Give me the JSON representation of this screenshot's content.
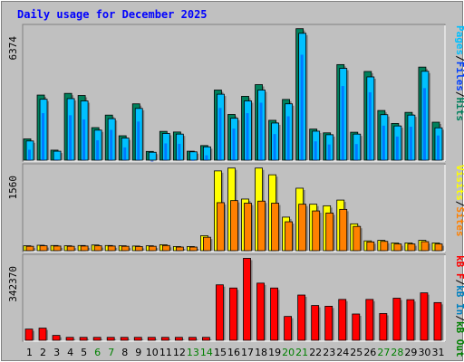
{
  "title": "Daily usage for December 2025",
  "colors": {
    "background": "#C0C0C0",
    "border_light": "#FFFFFF",
    "border_dark": "#808080",
    "title": "#0000FF",
    "hits": "#00805C",
    "files": "#0040FF",
    "pages": "#00C0FF",
    "visits": "#FFFF00",
    "sites": "#FF8000",
    "kbin": "#0080C0",
    "kbout": "#008000",
    "kbf": "#FF0000",
    "weekend_label": "#008000",
    "label": "#000000"
  },
  "chart_data": [
    {
      "type": "bar",
      "panel": "hits-files-pages",
      "ytick": "6374",
      "ymax": 6374,
      "ylim": [
        0,
        6374
      ],
      "legend": [
        "Pages",
        "/",
        "Files",
        "/",
        "Hits"
      ],
      "categories": [
        "1",
        "2",
        "3",
        "4",
        "5",
        "6",
        "7",
        "8",
        "9",
        "10",
        "11",
        "12",
        "13",
        "14",
        "15",
        "16",
        "17",
        "18",
        "19",
        "20",
        "21",
        "22",
        "23",
        "24",
        "25",
        "26",
        "27",
        "28",
        "29",
        "30",
        "31"
      ],
      "series": [
        {
          "name": "Hits",
          "values": [
            1020,
            3120,
            480,
            3200,
            3100,
            1560,
            2160,
            1170,
            2700,
            420,
            1380,
            1350,
            430,
            700,
            3360,
            2190,
            3060,
            3620,
            1910,
            2910,
            6300,
            1490,
            1310,
            4580,
            1340,
            4250,
            2380,
            1760,
            2290,
            4460,
            1820
          ]
        },
        {
          "name": "Files",
          "values": [
            850,
            2600,
            390,
            2500,
            2300,
            1300,
            1800,
            960,
            2200,
            320,
            1150,
            1130,
            360,
            580,
            2850,
            1860,
            2600,
            3100,
            1600,
            2450,
            5400,
            1250,
            1100,
            3900,
            1120,
            3600,
            2000,
            1480,
            1950,
            3800,
            1530
          ]
        },
        {
          "name": "Pages",
          "values": [
            920,
            2920,
            430,
            2950,
            2840,
            1440,
            1990,
            1060,
            2480,
            380,
            1280,
            1250,
            400,
            640,
            3160,
            2010,
            2840,
            3360,
            1780,
            2700,
            6080,
            1390,
            1220,
            4400,
            1250,
            3990,
            2180,
            1640,
            2160,
            4260,
            1550
          ]
        }
      ]
    },
    {
      "type": "bar",
      "panel": "visits-sites",
      "ytick": "1560",
      "ymax": 1560,
      "ylim": [
        0,
        1560
      ],
      "legend": [
        "Visits",
        "/",
        "Sites"
      ],
      "categories": [
        "1",
        "2",
        "3",
        "4",
        "5",
        "6",
        "7",
        "8",
        "9",
        "10",
        "11",
        "12",
        "13",
        "14",
        "15",
        "16",
        "17",
        "18",
        "19",
        "20",
        "21",
        "22",
        "23",
        "24",
        "25",
        "26",
        "27",
        "28",
        "29",
        "30",
        "31"
      ],
      "series": [
        {
          "name": "Visits",
          "values": [
            95,
            105,
            100,
            95,
            100,
            110,
            100,
            95,
            90,
            95,
            115,
            80,
            80,
            290,
            1545,
            1600,
            1000,
            1600,
            1470,
            650,
            1210,
            900,
            870,
            980,
            520,
            190,
            200,
            150,
            150,
            200,
            150
          ]
        },
        {
          "name": "Sites",
          "values": [
            85,
            95,
            90,
            85,
            90,
            95,
            90,
            85,
            80,
            85,
            100,
            70,
            70,
            260,
            930,
            970,
            920,
            960,
            920,
            560,
            900,
            770,
            730,
            800,
            470,
            170,
            180,
            130,
            130,
            175,
            130
          ]
        }
      ]
    },
    {
      "type": "bar",
      "panel": "kbytes",
      "ytick": "342370",
      "ymax": 342370,
      "ylim": [
        0,
        342370
      ],
      "legend": [
        "kB F",
        "/",
        "kB In",
        "/",
        "kB Out"
      ],
      "categories": [
        "1",
        "2",
        "3",
        "4",
        "5",
        "6",
        "7",
        "8",
        "9",
        "10",
        "11",
        "12",
        "13",
        "14",
        "15",
        "16",
        "17",
        "18",
        "19",
        "20",
        "21",
        "22",
        "23",
        "24",
        "25",
        "26",
        "27",
        "28",
        "29",
        "30",
        "31"
      ],
      "series": [
        {
          "name": "kB F",
          "values": [
            46000,
            50000,
            20000,
            12000,
            12000,
            12000,
            12000,
            12000,
            12000,
            12000,
            12000,
            12000,
            12000,
            12000,
            228000,
            215000,
            337000,
            235000,
            215000,
            98000,
            186000,
            143000,
            140000,
            168000,
            108000,
            168000,
            110000,
            173000,
            167000,
            195000,
            155000
          ]
        }
      ]
    }
  ]
}
